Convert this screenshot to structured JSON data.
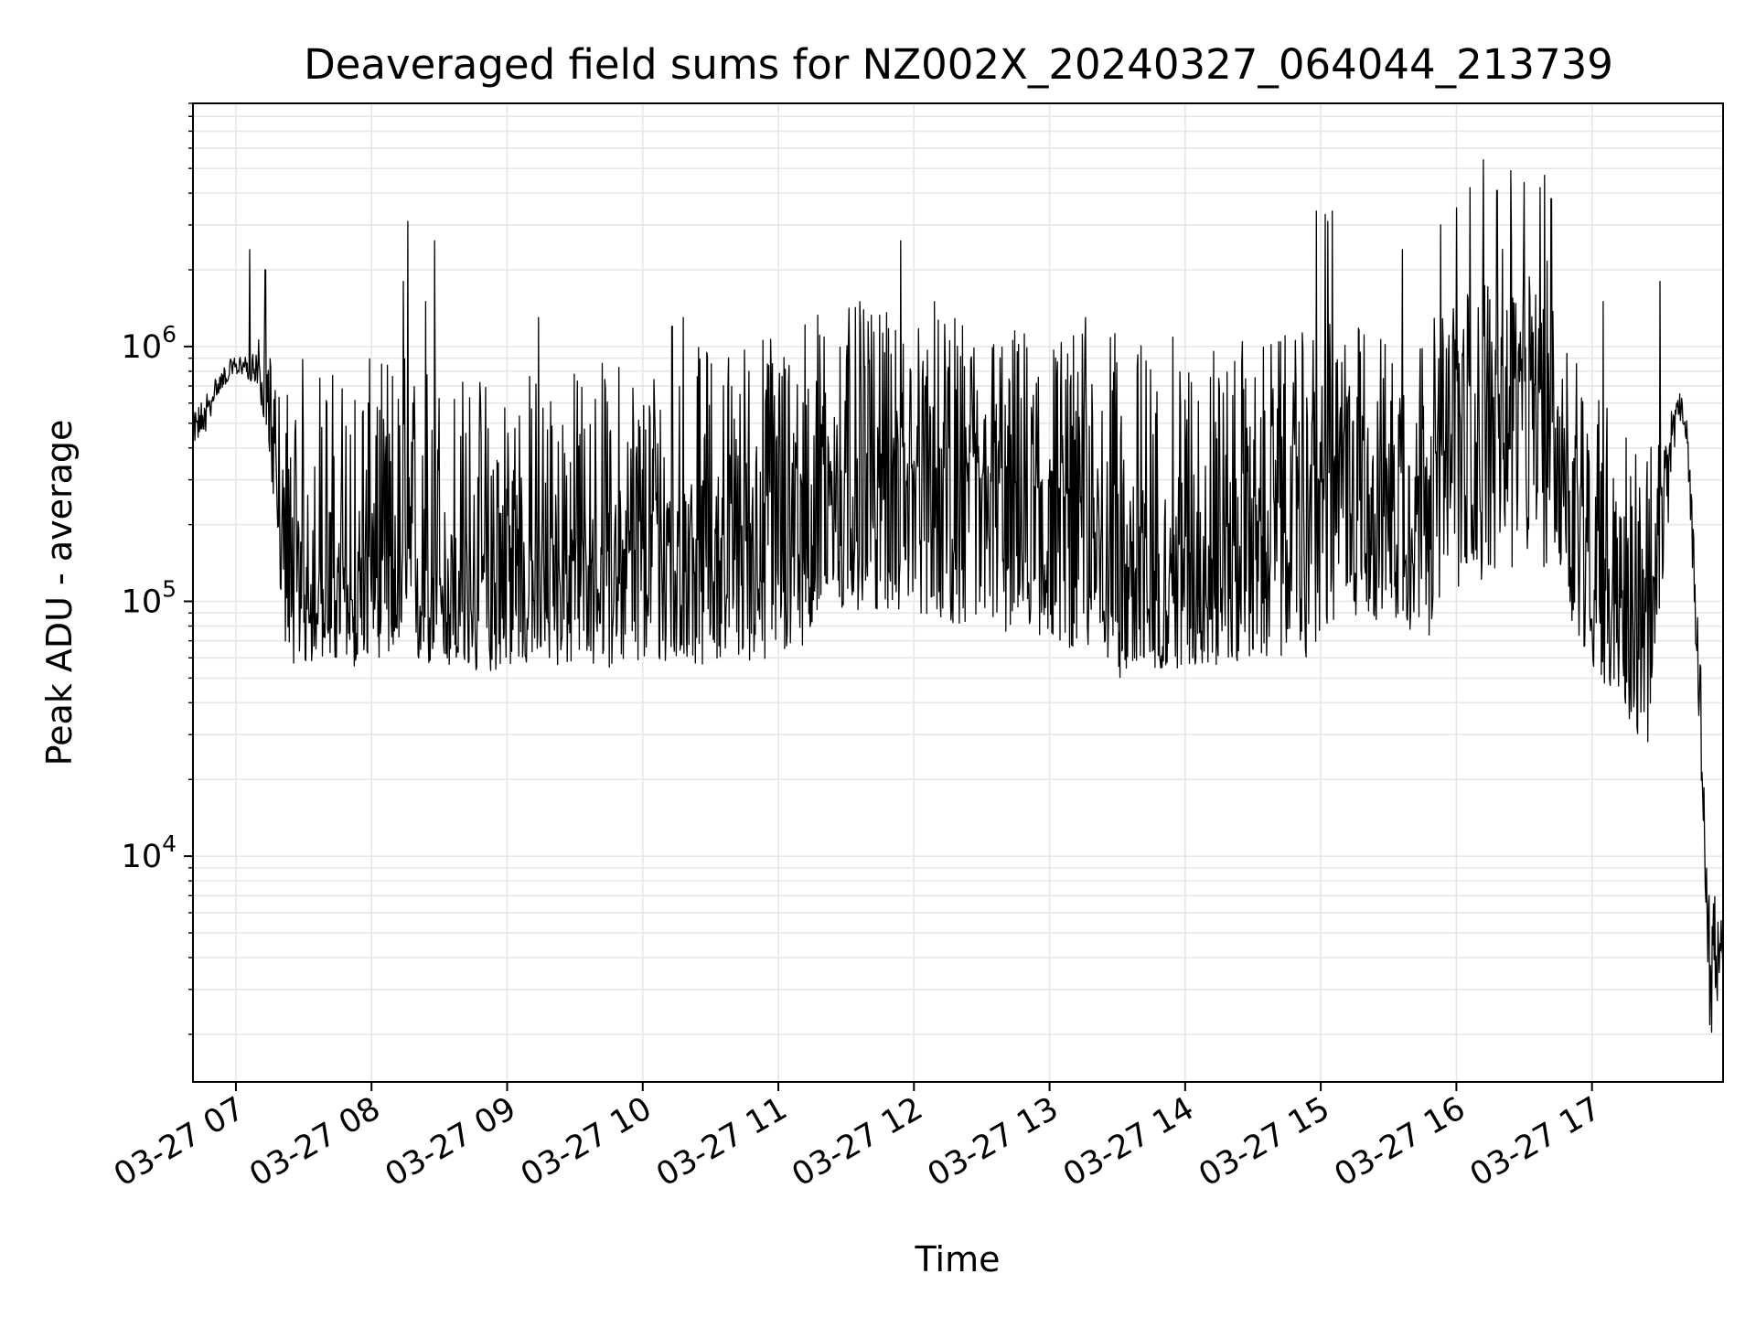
{
  "chart_data": {
    "type": "line",
    "title": "Deaveraged field sums for NZ002X_20240327_064044_213739",
    "xlabel": "Time",
    "ylabel": "Peak ADU - average",
    "y_scale": "log",
    "ylim": [
      1300,
      9000000
    ],
    "xlim": [
      "2024-03-27 06:41",
      "2024-03-27 17:58"
    ],
    "grid": true,
    "grid_color": "#e6e6e6",
    "line_color": "#000000",
    "x_ticks": [
      {
        "x": "2024-03-27 07:00",
        "label": "03-27 07"
      },
      {
        "x": "2024-03-27 08:00",
        "label": "03-27 08"
      },
      {
        "x": "2024-03-27 09:00",
        "label": "03-27 09"
      },
      {
        "x": "2024-03-27 10:00",
        "label": "03-27 10"
      },
      {
        "x": "2024-03-27 11:00",
        "label": "03-27 11"
      },
      {
        "x": "2024-03-27 12:00",
        "label": "03-27 12"
      },
      {
        "x": "2024-03-27 13:00",
        "label": "03-27 13"
      },
      {
        "x": "2024-03-27 14:00",
        "label": "03-27 14"
      },
      {
        "x": "2024-03-27 15:00",
        "label": "03-27 15"
      },
      {
        "x": "2024-03-27 16:00",
        "label": "03-27 16"
      },
      {
        "x": "2024-03-27 17:00",
        "label": "03-27 17"
      }
    ],
    "y_ticks": [
      {
        "value": 10000,
        "base": "10",
        "exp": "4"
      },
      {
        "value": 100000,
        "base": "10",
        "exp": "5"
      },
      {
        "value": 1000000,
        "base": "10",
        "exp": "6"
      }
    ],
    "series": [
      {
        "x": [
          "2024-03-27 06:41",
          "2024-03-27 06:46",
          "2024-03-27 06:52",
          "2024-03-27 06:58",
          "2024-03-27 07:04",
          "2024-03-27 07:10",
          "2024-03-27 07:14",
          "2024-03-27 07:18",
          "2024-03-27 07:20",
          "2024-03-27 07:23",
          "2024-03-27 07:27",
          "2024-03-27 07:32",
          "2024-03-27 07:38",
          "2024-03-27 07:45",
          "2024-03-27 07:52",
          "2024-03-27 08:00",
          "2024-03-27 08:10",
          "2024-03-27 08:20",
          "2024-03-27 08:30",
          "2024-03-27 08:45",
          "2024-03-27 09:00",
          "2024-03-27 09:20",
          "2024-03-27 09:40",
          "2024-03-27 10:00",
          "2024-03-27 10:20",
          "2024-03-27 10:40",
          "2024-03-27 11:00",
          "2024-03-27 11:20",
          "2024-03-27 11:40",
          "2024-03-27 12:00",
          "2024-03-27 12:20",
          "2024-03-27 12:40",
          "2024-03-27 13:00",
          "2024-03-27 13:20",
          "2024-03-27 13:30",
          "2024-03-27 13:45",
          "2024-03-27 14:00",
          "2024-03-27 14:20",
          "2024-03-27 14:40",
          "2024-03-27 14:55",
          "2024-03-27 15:10",
          "2024-03-27 15:30",
          "2024-03-27 15:45",
          "2024-03-27 16:00",
          "2024-03-27 16:15",
          "2024-03-27 16:25",
          "2024-03-27 16:35",
          "2024-03-27 16:45",
          "2024-03-27 17:00",
          "2024-03-27 17:10",
          "2024-03-27 17:15",
          "2024-03-27 17:20",
          "2024-03-27 17:25",
          "2024-03-27 17:33",
          "2024-03-27 17:38",
          "2024-03-27 17:42",
          "2024-03-27 17:45",
          "2024-03-27 17:48",
          "2024-03-27 17:50",
          "2024-03-27 17:52",
          "2024-03-27 17:54",
          "2024-03-27 17:56",
          "2024-03-27 17:58"
        ],
        "median": [
          480000,
          540000,
          700000,
          820000,
          850000,
          800000,
          600000,
          350000,
          180000,
          120000,
          100000,
          105000,
          130000,
          110000,
          100000,
          160000,
          130000,
          120000,
          115000,
          110000,
          140000,
          140000,
          150000,
          160000,
          170000,
          190000,
          220000,
          300000,
          340000,
          330000,
          300000,
          280000,
          270000,
          230000,
          140000,
          120000,
          150000,
          180000,
          220000,
          250000,
          380000,
          320000,
          290000,
          450000,
          620000,
          680000,
          700000,
          450000,
          180000,
          120000,
          90000,
          80000,
          75000,
          350000,
          600000,
          500000,
          150000,
          40000,
          12000,
          4000,
          3500,
          4500,
          4000
        ],
        "min": [
          420000,
          440000,
          650000,
          760000,
          780000,
          650000,
          450000,
          180000,
          90000,
          60000,
          55000,
          55000,
          60000,
          55000,
          55000,
          60000,
          60000,
          55000,
          55000,
          50000,
          55000,
          55000,
          55000,
          55000,
          55000,
          60000,
          55000,
          80000,
          90000,
          90000,
          80000,
          75000,
          70000,
          60000,
          50000,
          52000,
          55000,
          55000,
          60000,
          60000,
          90000,
          80000,
          70000,
          90000,
          130000,
          130000,
          150000,
          110000,
          50000,
          45000,
          35000,
          27000,
          27000,
          160000,
          540000,
          420000,
          100000,
          25000,
          8000,
          2000,
          2000,
          3000,
          3200
        ],
        "max": [
          550000,
          650000,
          800000,
          900000,
          950000,
          1100000,
          1000000,
          800000,
          700000,
          800000,
          900000,
          1000000,
          900000,
          850000,
          900000,
          900000,
          1000000,
          1000000,
          900000,
          800000,
          900000,
          800000,
          900000,
          950000,
          1000000,
          1100000,
          1300000,
          1500000,
          1400000,
          1300000,
          1300000,
          1250000,
          1200000,
          1200000,
          1150000,
          1100000,
          1100000,
          1050000,
          1100000,
          1150000,
          1300000,
          1150000,
          1200000,
          1600000,
          2200000,
          2600000,
          2800000,
          1800000,
          800000,
          600000,
          500000,
          450000,
          400000,
          500000,
          700000,
          550000,
          200000,
          60000,
          16000,
          7000,
          7500,
          6000,
          5500
        ]
      }
    ],
    "spikes": [
      {
        "x": "2024-03-27 07:06",
        "y": 2400000
      },
      {
        "x": "2024-03-27 07:13",
        "y": 2000000
      },
      {
        "x": "2024-03-27 08:14",
        "y": 1800000
      },
      {
        "x": "2024-03-27 08:16",
        "y": 3100000
      },
      {
        "x": "2024-03-27 08:24",
        "y": 1500000
      },
      {
        "x": "2024-03-27 08:28",
        "y": 2600000
      },
      {
        "x": "2024-03-27 09:14",
        "y": 1300000
      },
      {
        "x": "2024-03-27 10:13",
        "y": 1200000
      },
      {
        "x": "2024-03-27 10:18",
        "y": 1300000
      },
      {
        "x": "2024-03-27 11:36",
        "y": 1500000
      },
      {
        "x": "2024-03-27 11:54",
        "y": 2600000
      },
      {
        "x": "2024-03-27 12:09",
        "y": 1500000
      },
      {
        "x": "2024-03-27 13:16",
        "y": 1300000
      },
      {
        "x": "2024-03-27 14:58",
        "y": 3400000
      },
      {
        "x": "2024-03-27 15:02",
        "y": 3300000
      },
      {
        "x": "2024-03-27 15:03",
        "y": 3100000
      },
      {
        "x": "2024-03-27 15:05",
        "y": 3400000
      },
      {
        "x": "2024-03-27 15:36",
        "y": 2400000
      },
      {
        "x": "2024-03-27 15:53",
        "y": 3000000
      },
      {
        "x": "2024-03-27 16:00",
        "y": 3500000
      },
      {
        "x": "2024-03-27 16:06",
        "y": 4200000
      },
      {
        "x": "2024-03-27 16:12",
        "y": 5400000
      },
      {
        "x": "2024-03-27 16:18",
        "y": 4100000
      },
      {
        "x": "2024-03-27 16:24",
        "y": 4900000
      },
      {
        "x": "2024-03-27 16:30",
        "y": 4400000
      },
      {
        "x": "2024-03-27 16:37",
        "y": 4200000
      },
      {
        "x": "2024-03-27 16:39",
        "y": 4700000
      },
      {
        "x": "2024-03-27 16:42",
        "y": 3800000
      },
      {
        "x": "2024-03-27 17:05",
        "y": 1500000
      },
      {
        "x": "2024-03-27 17:30",
        "y": 1800000
      }
    ]
  }
}
